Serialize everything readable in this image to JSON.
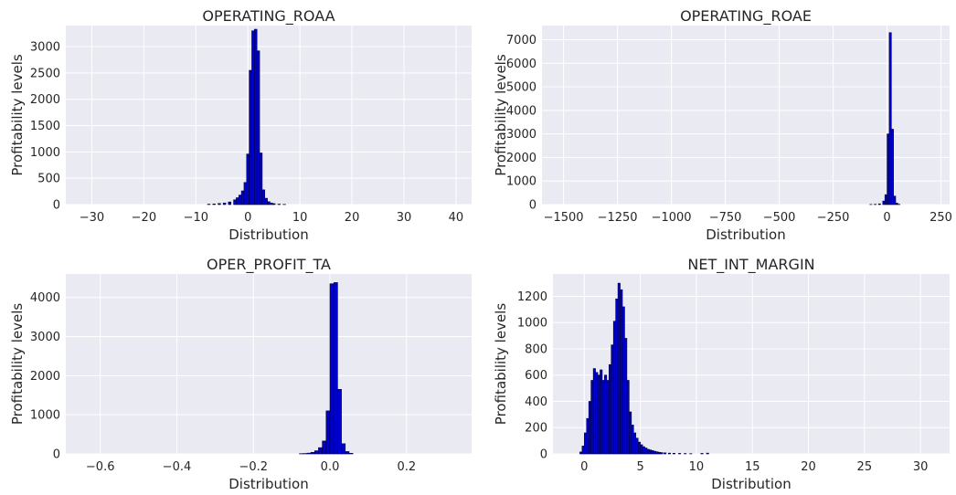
{
  "chart_data": [
    {
      "type": "bar",
      "title": "OPERATING_ROAA",
      "xlabel": "Distribution",
      "ylabel": "Profitability levels",
      "xlim": [
        -35,
        43
      ],
      "ylim": [
        0,
        3400
      ],
      "xticks": [
        -30,
        -20,
        -10,
        0,
        10,
        20,
        30,
        40
      ],
      "xtick_labels": [
        "−30",
        "−20",
        "−10",
        "0",
        "10",
        "20",
        "30",
        "40"
      ],
      "yticks": [
        0,
        500,
        1000,
        1500,
        2000,
        2500,
        3000
      ],
      "ytick_labels": [
        "0",
        "500",
        "1000",
        "1500",
        "2000",
        "2500",
        "3000"
      ],
      "bins": {
        "x": [
          -7.5,
          -6.5,
          -5.5,
          -4.5,
          -3.5,
          -2.5,
          -2,
          -1.5,
          -1,
          -0.5,
          0,
          0.5,
          1,
          1.5,
          2,
          2.5,
          3,
          3.5,
          4,
          4.5,
          5,
          6,
          7
        ],
        "values": [
          8,
          12,
          20,
          30,
          50,
          90,
          130,
          180,
          260,
          420,
          960,
          2550,
          3300,
          3330,
          2920,
          980,
          280,
          120,
          55,
          30,
          18,
          8,
          4
        ],
        "width": 0.5
      }
    },
    {
      "type": "bar",
      "title": "OPERATING_ROAE",
      "xlabel": "Distribution",
      "ylabel": "Profitability levels",
      "xlim": [
        -1600,
        290
      ],
      "ylim": [
        0,
        7600
      ],
      "xticks": [
        -1500,
        -1250,
        -1000,
        -750,
        -500,
        -250,
        0,
        250
      ],
      "xtick_labels": [
        "−1500",
        "−1250",
        "−1000",
        "−750",
        "−500",
        "−250",
        "0",
        "250"
      ],
      "yticks": [
        0,
        1000,
        2000,
        3000,
        4000,
        5000,
        6000,
        7000
      ],
      "ytick_labels": [
        "0",
        "1000",
        "2000",
        "3000",
        "4000",
        "5000",
        "6000",
        "7000"
      ],
      "bins": {
        "x": [
          -75,
          -55,
          -35,
          -15,
          -5,
          5,
          15,
          25,
          35,
          45,
          55
        ],
        "values": [
          6,
          12,
          30,
          150,
          420,
          3000,
          7300,
          3200,
          360,
          60,
          12
        ],
        "width": 10
      }
    },
    {
      "type": "bar",
      "title": "OPER_PROFIT_TA",
      "xlabel": "Distribution",
      "ylabel": "Profitability levels",
      "xlim": [
        -0.69,
        0.37
      ],
      "ylim": [
        0,
        4600
      ],
      "xticks": [
        -0.6,
        -0.4,
        -0.2,
        0.0,
        0.2
      ],
      "xtick_labels": [
        "−0.6",
        "−0.4",
        "−0.2",
        "0.0",
        "0.2"
      ],
      "yticks": [
        0,
        1000,
        2000,
        3000,
        4000
      ],
      "ytick_labels": [
        "0",
        "1000",
        "2000",
        "3000",
        "4000"
      ],
      "bins": {
        "x": [
          -0.075,
          -0.065,
          -0.055,
          -0.045,
          -0.035,
          -0.025,
          -0.015,
          -0.005,
          0.005,
          0.015,
          0.025,
          0.035,
          0.045,
          0.055
        ],
        "values": [
          6,
          10,
          20,
          40,
          80,
          160,
          330,
          1100,
          4350,
          4380,
          1650,
          260,
          60,
          15
        ],
        "width": 0.01
      }
    },
    {
      "type": "bar",
      "title": "NET_INT_MARGIN",
      "xlabel": "Distribution",
      "ylabel": "Profitability levels",
      "xlim": [
        -2.8,
        32.6
      ],
      "ylim": [
        0,
        1370
      ],
      "xticks": [
        0,
        5,
        10,
        15,
        20,
        25,
        30
      ],
      "xtick_labels": [
        "0",
        "5",
        "10",
        "15",
        "20",
        "25",
        "30"
      ],
      "yticks": [
        0,
        200,
        400,
        600,
        800,
        1000,
        1200
      ],
      "ytick_labels": [
        "0",
        "200",
        "400",
        "600",
        "800",
        "1000",
        "1200"
      ],
      "bins": {
        "x": [
          -0.3,
          -0.1,
          0.1,
          0.3,
          0.5,
          0.7,
          0.9,
          1.1,
          1.3,
          1.5,
          1.7,
          1.9,
          2.1,
          2.3,
          2.5,
          2.7,
          2.9,
          3.1,
          3.3,
          3.5,
          3.7,
          3.9,
          4.1,
          4.3,
          4.5,
          4.7,
          4.9,
          5.1,
          5.3,
          5.5,
          5.7,
          5.9,
          6.1,
          6.3,
          6.5,
          6.7,
          6.9,
          7.2,
          7.6,
          8.0,
          8.5,
          9.0,
          9.5,
          10.5,
          11.0
        ],
        "values": [
          15,
          60,
          160,
          270,
          400,
          560,
          650,
          620,
          600,
          640,
          560,
          600,
          560,
          680,
          830,
          1010,
          1180,
          1300,
          1250,
          1120,
          880,
          560,
          320,
          220,
          160,
          120,
          90,
          70,
          55,
          45,
          35,
          30,
          25,
          20,
          16,
          12,
          10,
          8,
          6,
          5,
          4,
          3,
          2,
          4,
          6
        ],
        "width": 0.2
      }
    }
  ]
}
